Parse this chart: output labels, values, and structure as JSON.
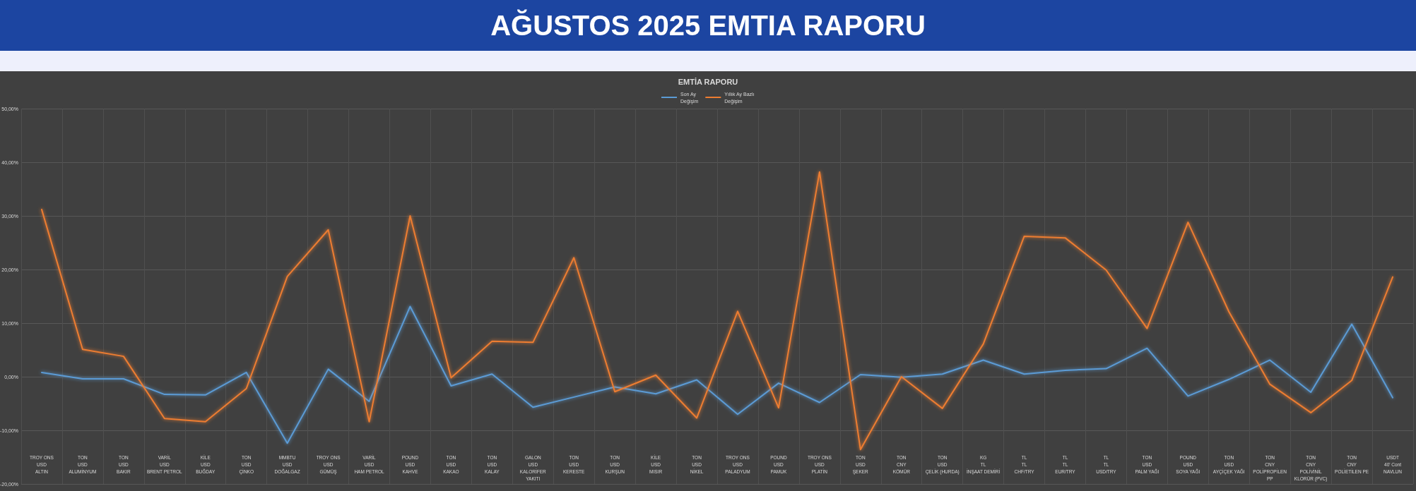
{
  "chart_data": {
    "type": "line",
    "title": "AĞUSTOS 2025 EMTIA RAPORU",
    "subtitle": "EMTİA RAPORU",
    "categories": [
      "TROY ONS\nUSD\nALTIN",
      "TON\nUSD\nALUMİNYUM",
      "TON\nUSD\nBAKIR",
      "VARİL\nUSD\nBRENT PETROL",
      "KİLE\nUSD\nBUĞDAY",
      "TON\nUSD\nÇİNKO",
      "MMBTU\nUSD\nDOĞALGAZ",
      "TROY ONS\nUSD\nGÜMÜŞ",
      "VARİL\nUSD\nHAM PETROL",
      "POUND\nUSD\nKAHVE",
      "TON\nUSD\nKAKAO",
      "TON\nUSD\nKALAY",
      "GALON\nUSD\nKALORİFER YAKITI",
      "TON\nUSD\nKERESTE",
      "TON\nUSD\nKURŞUN",
      "KİLE\nUSD\nMISIR",
      "TON\nUSD\nNİKEL",
      "TROY ONS\nUSD\nPALADYUM",
      "POUND\nUSD\nPAMUK",
      "TROY ONS\nUSD\nPLATİN",
      "TON\nUSD\nŞEKER",
      "TON\nCNY\nKÖMÜR",
      "TON\nUSD\nÇELİK (HURDA)",
      "KG\nTL\nİNŞAAT DEMİRİ",
      "TL\nTL\nCHF/TRY",
      "TL\nTL\nEUR/TRY",
      "TL\nTL\nUSD/TRY",
      "TON\nUSD\nPALM YAĞI",
      "POUND\nUSD\nSOYA YAĞI",
      "TON\nUSD\nAYÇİÇEK YAĞI",
      "TON\nCNY\nPOLİPROPİLEN PP",
      "TON\nCNY\nPOLİVİNİL KLORÜR (PVC)",
      "TON\nCNY\nPOLİETİLEN PE",
      "USDT\n40' Cont\nNAVLUN"
    ],
    "series": [
      {
        "name": "Son Ay Değişim",
        "color": "#5b9bd5",
        "values": [
          0.8,
          -0.4,
          -0.4,
          -3.3,
          -3.4,
          0.8,
          -12.4,
          1.4,
          -4.6,
          13.1,
          -1.7,
          0.5,
          -5.7,
          -3.8,
          -1.9,
          -3.2,
          -0.6,
          -7.0,
          -1.2,
          -4.8,
          0.4,
          -0.1,
          0.5,
          3.1,
          0.5,
          1.2,
          1.5,
          5.3,
          -3.6,
          -0.5,
          3.1,
          -2.9,
          9.8,
          -3.9
        ]
      },
      {
        "name": "Yıllık Ay Bazlı Değişim",
        "color": "#ed7d31",
        "values": [
          31.2,
          5.1,
          3.8,
          -7.8,
          -8.4,
          -2.2,
          18.7,
          27.4,
          -8.4,
          30.0,
          -0.2,
          6.6,
          6.4,
          22.2,
          -2.8,
          0.3,
          -7.7,
          12.2,
          -5.8,
          38.2,
          -13.6,
          0.0,
          -5.9,
          6.1,
          26.2,
          25.9,
          19.9,
          9.0,
          28.8,
          12.1,
          -1.4,
          -6.7,
          -0.7,
          18.6
        ]
      }
    ],
    "ylim": [
      -20,
      50
    ],
    "yticks": [
      {
        "value": -20,
        "label": "-20,00%"
      },
      {
        "value": -10,
        "label": "-10,00%"
      },
      {
        "value": 0,
        "label": "0,00%"
      },
      {
        "value": 10,
        "label": "10,00%"
      },
      {
        "value": 20,
        "label": "20,00%"
      },
      {
        "value": 30,
        "label": "30,00%"
      },
      {
        "value": 40,
        "label": "40,00%"
      },
      {
        "value": 50,
        "label": "50,00%"
      }
    ],
    "grid": true,
    "legend": "top",
    "marker": "none",
    "line_style": "solid"
  }
}
